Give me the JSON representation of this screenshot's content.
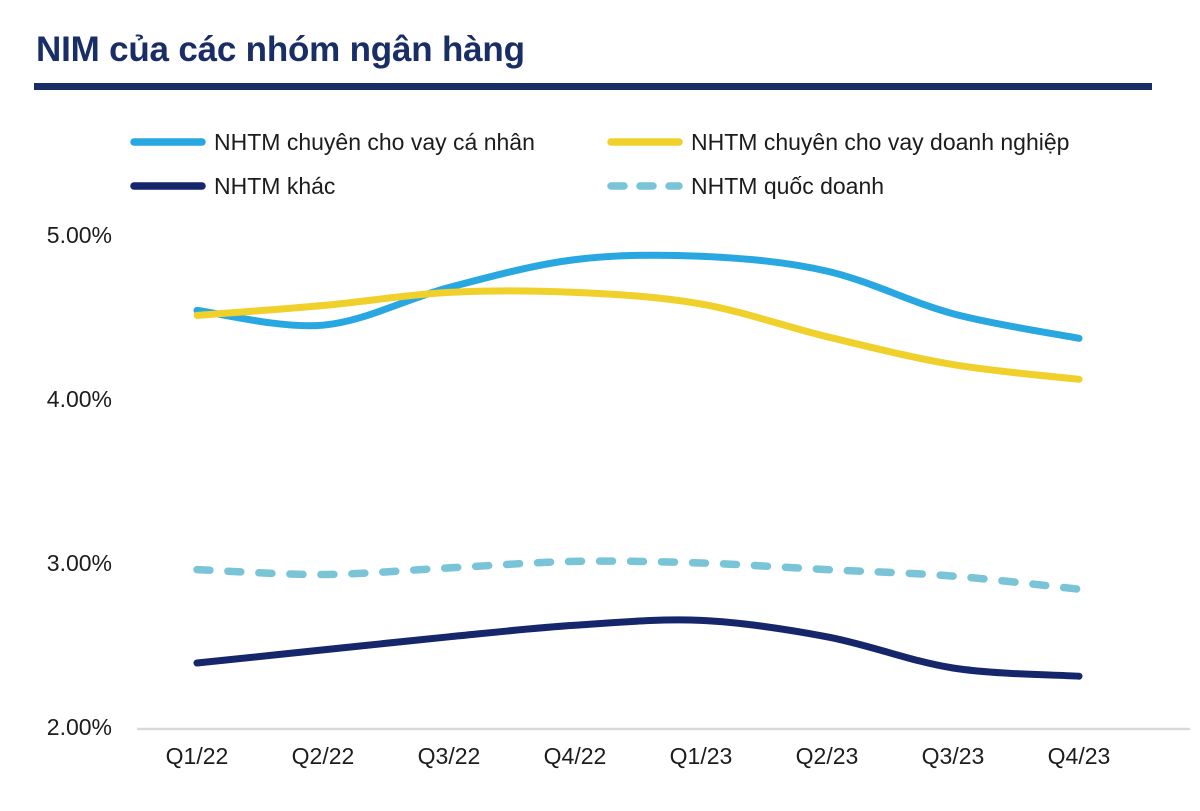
{
  "title": {
    "text": "NIM của các nhóm ngân hàng"
  },
  "colors": {
    "title_navy": "#192E66",
    "axis_line": "#D9D9D9",
    "label_text": "#1C1C1C",
    "background": "#FFFFFF"
  },
  "chart_data": {
    "type": "line",
    "title": "NIM của các nhóm ngân hàng",
    "unit": "%",
    "categories": [
      "Q1/22",
      "Q2/22",
      "Q3/22",
      "Q4/22",
      "Q1/23",
      "Q2/23",
      "Q3/23",
      "Q4/23"
    ],
    "series": [
      {
        "name": "NHTM chuyên cho vay cá nhân",
        "color": "#29A7E1",
        "line_style": "solid",
        "values": [
          4.54,
          4.45,
          4.68,
          4.85,
          4.87,
          4.78,
          4.52,
          4.37
        ]
      },
      {
        "name": "NHTM chuyên cho vay doanh nghiệp",
        "color": "#F0D02A",
        "line_style": "solid",
        "values": [
          4.51,
          4.57,
          4.65,
          4.65,
          4.58,
          4.38,
          4.21,
          4.12
        ]
      },
      {
        "name": "NHTM khác",
        "color": "#16266B",
        "line_style": "solid",
        "values": [
          2.39,
          2.47,
          2.55,
          2.62,
          2.65,
          2.55,
          2.36,
          2.31
        ]
      },
      {
        "name": "NHTM quốc doanh",
        "color": "#79C4D6",
        "line_style": "dashed",
        "values": [
          2.96,
          2.93,
          2.97,
          3.01,
          3.0,
          2.96,
          2.92,
          2.84
        ]
      }
    ],
    "yticks": [
      {
        "label": "5.00%",
        "value": 5.0
      },
      {
        "label": "4.00%",
        "value": 4.0
      },
      {
        "label": "3.00%",
        "value": 3.0
      },
      {
        "label": "2.00%",
        "value": 2.0
      }
    ],
    "ylim": [
      2.0,
      5.0
    ],
    "grid": false,
    "legend_position": "top"
  }
}
